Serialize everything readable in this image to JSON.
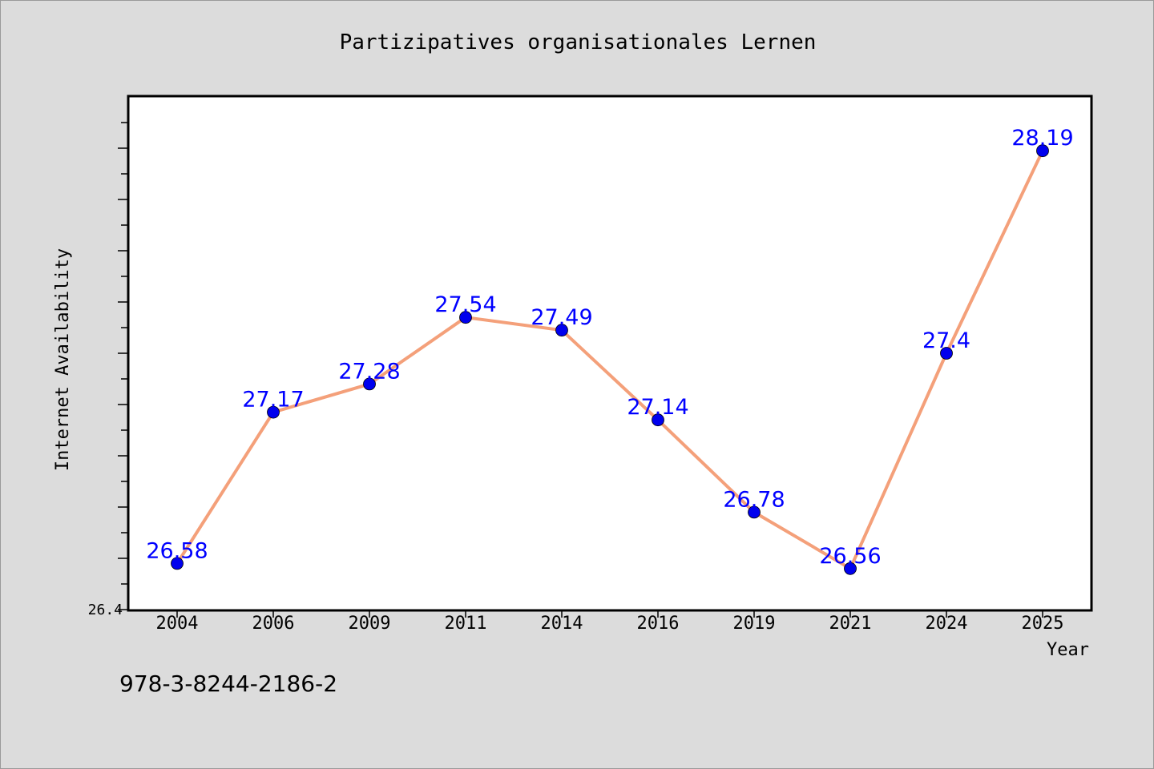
{
  "chart_data": {
    "type": "line",
    "title": "Partizipatives organisationales Lernen",
    "xlabel": "Year",
    "ylabel": "Internet Availability",
    "categories": [
      "2004",
      "2006",
      "2009",
      "2011",
      "2014",
      "2016",
      "2019",
      "2021",
      "2024",
      "2025"
    ],
    "series": [
      {
        "values": [
          26.58,
          27.17,
          27.28,
          27.54,
          27.49,
          27.14,
          26.78,
          26.56,
          27.4,
          28.19
        ],
        "data_labels": [
          "26.58",
          "27.17",
          "27.28",
          "27.54",
          "27.49",
          "27.14",
          "26.78",
          "26.56",
          "27.4",
          "28.19"
        ]
      }
    ],
    "yaxis": {
      "range": [
        26.4,
        28.4
      ],
      "visible_tick_labels": [
        "26.4"
      ]
    },
    "grid": false,
    "legend": "none",
    "colors": {
      "line": "#f4a07a",
      "marker": "#0000ee",
      "data_label": "#0000ff",
      "background": "#dcdcdc",
      "plot_area": "#ffffff",
      "axis": "#000000"
    }
  },
  "footer": {
    "isbn": "978-3-8244-2186-2"
  }
}
